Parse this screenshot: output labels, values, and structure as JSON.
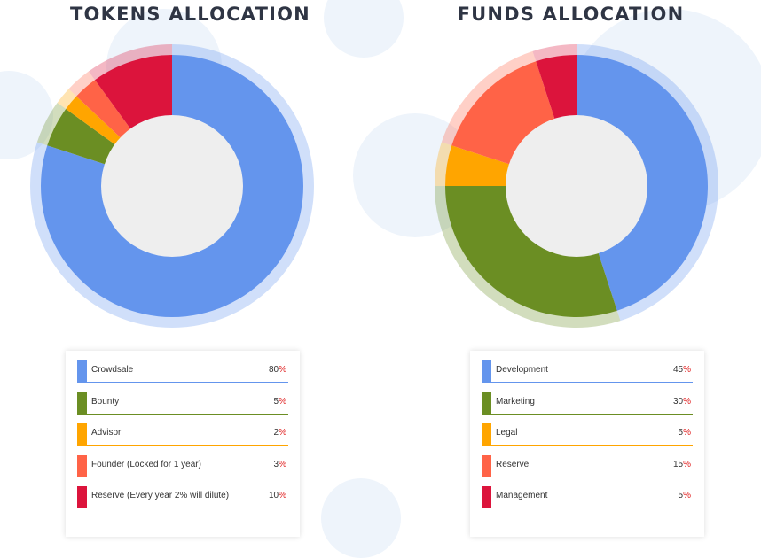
{
  "chart_data": [
    {
      "type": "pie",
      "title": "TOKENS ALLOCATION",
      "categories": [
        "Crowdsale",
        "Bounty",
        "Advisor",
        "Founder (Locked for 1 year)",
        "Reserve (Every year 2% will dilute)"
      ],
      "values": [
        80,
        5,
        2,
        3,
        10
      ],
      "colors": [
        "#6495ed",
        "#6b8e23",
        "#ffa500",
        "#ff6347",
        "#dc143c"
      ],
      "unit": "%"
    },
    {
      "type": "pie",
      "title": "FUNDS ALLOCATION",
      "categories": [
        "Development",
        "Marketing",
        "Legal",
        "Reserve",
        "Management"
      ],
      "values": [
        45,
        30,
        5,
        15,
        5
      ],
      "colors": [
        "#6495ed",
        "#6b8e23",
        "#ffa500",
        "#ff6347",
        "#dc143c"
      ],
      "unit": "%"
    }
  ],
  "center_color": "#eeeeee"
}
